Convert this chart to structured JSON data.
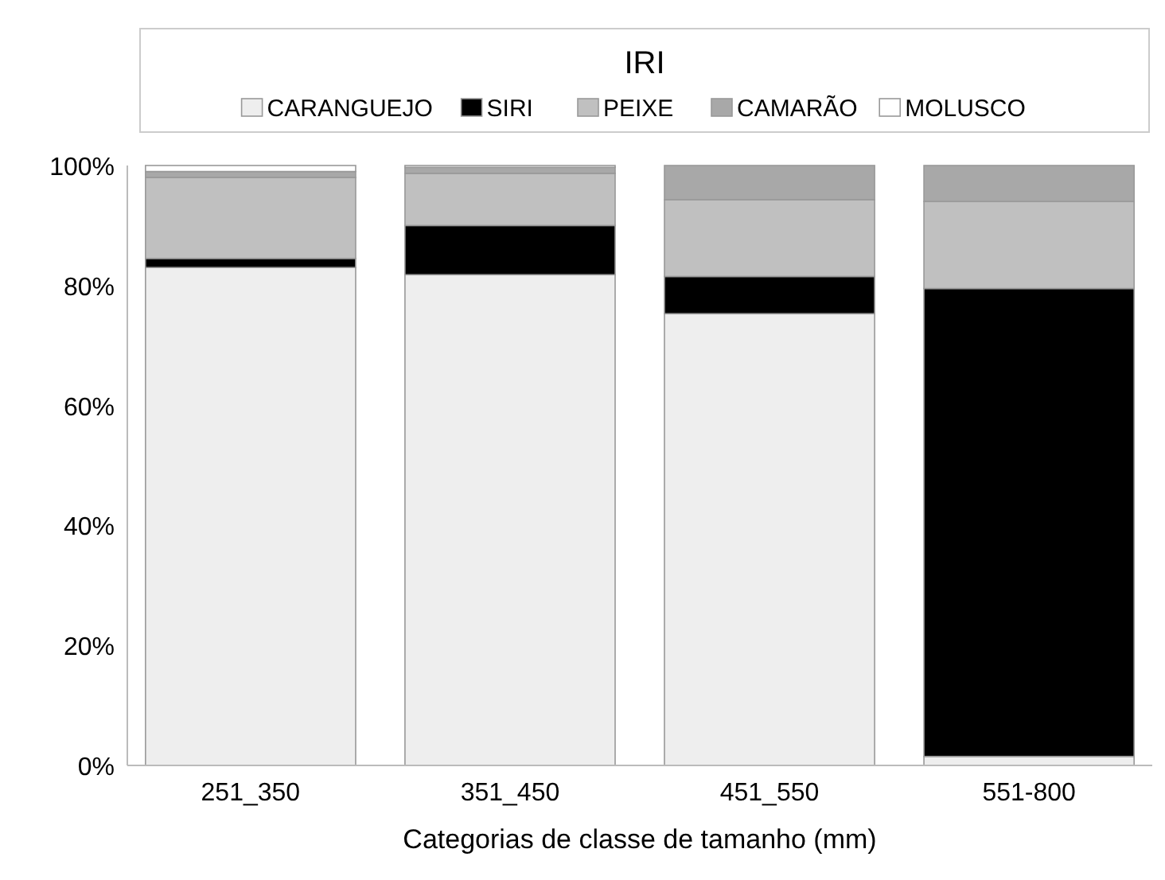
{
  "chart_data": {
    "type": "bar",
    "stacked": true,
    "legend_title": "IRI",
    "legend": "top",
    "xlabel": "Categorias de classe de tamanho (mm)",
    "categories": [
      "251_350",
      "351_450",
      "451_550",
      "551-800"
    ],
    "ylim": [
      0,
      100
    ],
    "yticks": [
      {
        "value": 0,
        "label": "0%"
      },
      {
        "value": 20,
        "label": "20%"
      },
      {
        "value": 40,
        "label": "40%"
      },
      {
        "value": 60,
        "label": "60%"
      },
      {
        "value": 80,
        "label": "80%"
      },
      {
        "value": 100,
        "label": "100%"
      }
    ],
    "series": [
      {
        "name": "CARANGUEJO",
        "color": "#eeeeee",
        "values": [
          83,
          81.8,
          75.3,
          1.5
        ]
      },
      {
        "name": "SIRI",
        "color": "#000000",
        "values": [
          1.5,
          8.2,
          6.2,
          78
        ]
      },
      {
        "name": "PEIXE",
        "color": "#c0c0c0",
        "values": [
          13.5,
          8.7,
          12.8,
          14.5
        ]
      },
      {
        "name": "CAMARÃO",
        "color": "#a8a8a8",
        "values": [
          1,
          1,
          5.7,
          6
        ]
      },
      {
        "name": "MOLUSCO",
        "color": "#ffffff",
        "values": [
          1,
          0.3,
          0,
          0
        ]
      }
    ]
  }
}
